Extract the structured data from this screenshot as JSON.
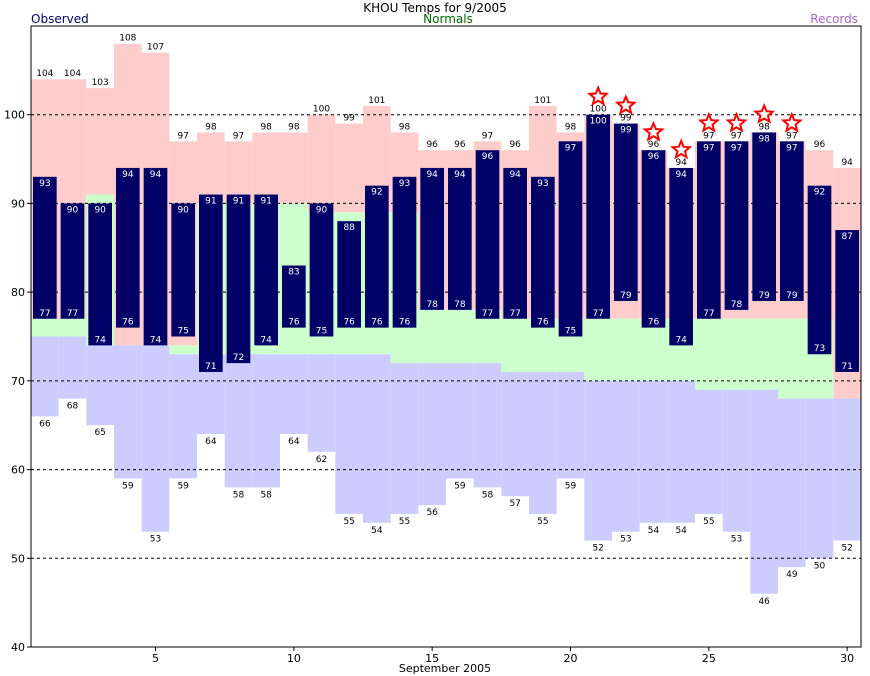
{
  "chart_data": {
    "type": "bar",
    "title": "KHOU Temps for 9/2005",
    "xlabel": "September 2005",
    "ylabel": "",
    "xlim": [
      0.5,
      30.5
    ],
    "ylim": [
      40,
      110
    ],
    "x_ticks": [
      5,
      10,
      15,
      20,
      25,
      30
    ],
    "y_ticks": [
      40,
      50,
      60,
      70,
      80,
      90,
      100
    ],
    "grid_y": [
      50,
      60,
      70,
      80,
      90,
      100
    ],
    "legend": [
      {
        "label": "Observed",
        "color": "#000066",
        "position": "top-left"
      },
      {
        "label": "Normals",
        "color": "#006600",
        "position": "top-center"
      },
      {
        "label": "Records",
        "color": "#aa66cc",
        "position": "top-right"
      }
    ],
    "colors": {
      "observed": "#000066",
      "normals": "#ccffcc",
      "record_high": "#ffcccc",
      "record_low": "#ccccff",
      "star": "#ff0000"
    },
    "days": [
      1,
      2,
      3,
      4,
      5,
      6,
      7,
      8,
      9,
      10,
      11,
      12,
      13,
      14,
      15,
      16,
      17,
      18,
      19,
      20,
      21,
      22,
      23,
      24,
      25,
      26,
      27,
      28,
      29,
      30
    ],
    "observed_high": [
      93,
      90,
      90,
      94,
      94,
      90,
      91,
      91,
      91,
      83,
      90,
      88,
      92,
      93,
      94,
      94,
      96,
      94,
      93,
      97,
      100,
      99,
      96,
      94,
      97,
      97,
      98,
      97,
      92,
      87
    ],
    "observed_low": [
      77,
      77,
      74,
      76,
      74,
      75,
      71,
      72,
      74,
      76,
      75,
      76,
      76,
      76,
      78,
      78,
      77,
      77,
      76,
      75,
      77,
      79,
      76,
      74,
      77,
      78,
      79,
      79,
      73,
      71
    ],
    "record_high": [
      104,
      104,
      103,
      108,
      107,
      97,
      98,
      97,
      98,
      98,
      100,
      99,
      101,
      98,
      96,
      96,
      97,
      96,
      101,
      98,
      100,
      99,
      96,
      94,
      97,
      97,
      98,
      97,
      96,
      94
    ],
    "record_low": [
      66,
      68,
      65,
      59,
      53,
      59,
      64,
      58,
      58,
      64,
      62,
      55,
      54,
      55,
      56,
      59,
      58,
      57,
      55,
      59,
      52,
      53,
      54,
      54,
      55,
      53,
      46,
      49,
      50,
      52
    ],
    "normal_high": [
      77,
      77,
      91,
      74,
      74,
      74,
      90,
      90,
      90,
      90,
      89,
      89,
      89,
      89,
      78,
      78,
      78,
      77,
      77,
      77,
      77,
      77,
      77,
      77,
      77,
      77,
      77,
      77,
      77,
      68
    ],
    "normal_low": [
      75,
      75,
      74,
      74,
      74,
      73,
      73,
      73,
      73,
      73,
      73,
      73,
      73,
      72,
      72,
      72,
      72,
      71,
      71,
      71,
      70,
      70,
      70,
      70,
      69,
      69,
      69,
      68,
      68,
      68
    ],
    "new_records": [
      21,
      22,
      23,
      24,
      25,
      26,
      27,
      28
    ]
  }
}
